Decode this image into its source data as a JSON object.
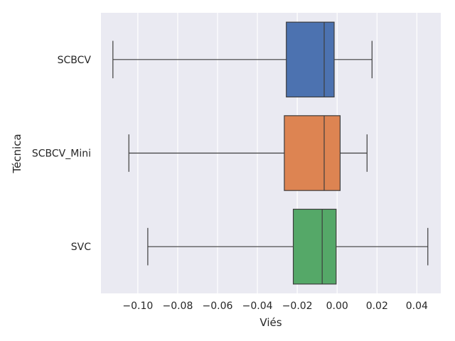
{
  "chart_data": {
    "type": "boxplot",
    "orientation": "horizontal",
    "title": "",
    "xlabel": "Viés",
    "ylabel": "Técnica",
    "xlim": [
      -0.1185,
      0.052
    ],
    "xticks": [
      -0.1,
      -0.08,
      -0.06,
      -0.04,
      -0.02,
      0.0,
      0.02,
      0.04
    ],
    "xtick_labels": [
      "−0.10",
      "−0.08",
      "−0.06",
      "−0.04",
      "−0.02",
      "0.00",
      "0.02",
      "0.04"
    ],
    "grid": true,
    "background": "#eaeaf2",
    "categories": [
      "SCBCV",
      "SCBCV_Mini",
      "SVC"
    ],
    "boxes": [
      {
        "category": "SCBCV",
        "whisker_low": -0.1125,
        "q1": -0.0255,
        "median": -0.0065,
        "q3": -0.0015,
        "whisker_high": 0.0175,
        "color": "#4c72b0"
      },
      {
        "category": "SCBCV_Mini",
        "whisker_low": -0.1045,
        "q1": -0.0265,
        "median": -0.0065,
        "q3": 0.0015,
        "whisker_high": 0.015,
        "color": "#dd8452"
      },
      {
        "category": "SVC",
        "whisker_low": -0.095,
        "q1": -0.022,
        "median": -0.0075,
        "q3": -0.0005,
        "whisker_high": 0.0455,
        "color": "#55a868"
      }
    ]
  }
}
